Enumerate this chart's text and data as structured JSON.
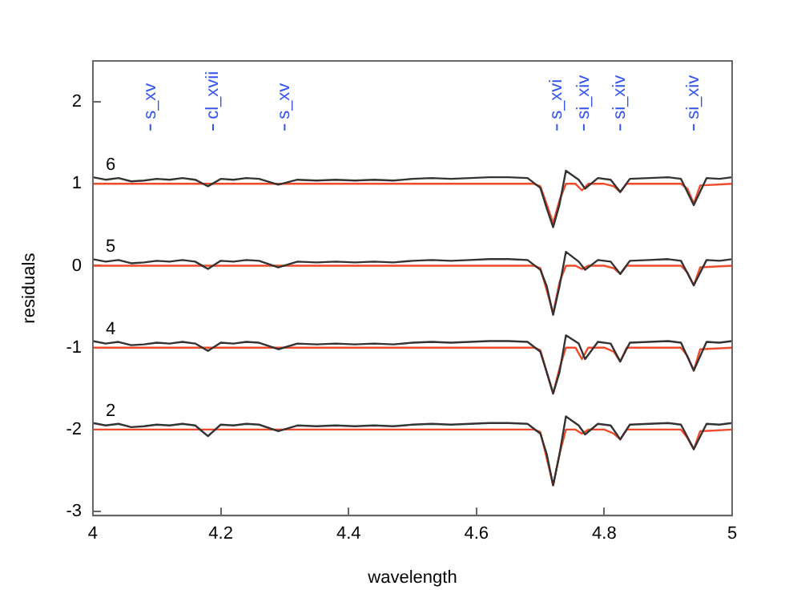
{
  "chart_data": {
    "type": "line",
    "xlabel": "wavelength",
    "ylabel": "residuals",
    "xlim": [
      4,
      5
    ],
    "xticks": [
      4,
      4.2,
      4.4,
      4.6,
      4.8,
      5
    ],
    "ylim": [
      -3.05,
      2.5
    ],
    "yticks": [
      -3,
      -2,
      -1,
      0,
      1,
      2
    ],
    "grid": false,
    "legend": false,
    "marker": "none",
    "line_style": "solid",
    "ref_lines": [
      {
        "axis": "x",
        "value": 4.09,
        "label": "s_xv",
        "color": "#3355ee"
      },
      {
        "axis": "x",
        "value": 4.188,
        "label": "cl_xvii",
        "color": "#3355ee"
      },
      {
        "axis": "x",
        "value": 4.3,
        "label": "s_xv",
        "color": "#3355ee"
      },
      {
        "axis": "x",
        "value": 4.726,
        "label": "s_xvi",
        "color": "#3355ee"
      },
      {
        "axis": "x",
        "value": 4.768,
        "label": "si_xiv",
        "color": "#3355ee"
      },
      {
        "axis": "x",
        "value": 4.825,
        "label": "si_xiv",
        "color": "#3355ee"
      },
      {
        "axis": "x",
        "value": 4.94,
        "label": "si_xiv",
        "color": "#3355ee"
      }
    ],
    "series": [
      {
        "name": "6",
        "color": "#333333",
        "x": [
          4.0,
          4.02,
          4.04,
          4.06,
          4.08,
          4.1,
          4.12,
          4.14,
          4.16,
          4.18,
          4.2,
          4.22,
          4.24,
          4.26,
          4.29,
          4.32,
          4.35,
          4.38,
          4.41,
          4.44,
          4.47,
          4.5,
          4.53,
          4.56,
          4.59,
          4.62,
          4.65,
          4.68,
          4.7,
          4.71,
          4.72,
          4.73,
          4.74,
          4.76,
          4.77,
          4.79,
          4.81,
          4.825,
          4.84,
          4.87,
          4.9,
          4.92,
          4.94,
          4.96,
          4.98,
          5.0
        ],
        "values": [
          1.08,
          1.05,
          1.07,
          1.03,
          1.04,
          1.06,
          1.05,
          1.07,
          1.05,
          0.97,
          1.06,
          1.05,
          1.07,
          1.06,
          0.99,
          1.05,
          1.04,
          1.05,
          1.04,
          1.05,
          1.04,
          1.06,
          1.07,
          1.06,
          1.07,
          1.08,
          1.08,
          1.07,
          0.95,
          0.7,
          0.47,
          0.75,
          1.16,
          1.05,
          0.94,
          1.07,
          1.05,
          0.9,
          1.06,
          1.07,
          1.08,
          1.06,
          0.74,
          1.07,
          1.06,
          1.08
        ]
      },
      {
        "name": "5",
        "color": "#333333",
        "x": [
          4.0,
          4.02,
          4.04,
          4.06,
          4.08,
          4.1,
          4.12,
          4.14,
          4.16,
          4.18,
          4.2,
          4.22,
          4.24,
          4.26,
          4.29,
          4.32,
          4.35,
          4.38,
          4.41,
          4.44,
          4.47,
          4.5,
          4.53,
          4.56,
          4.59,
          4.62,
          4.65,
          4.68,
          4.7,
          4.71,
          4.72,
          4.73,
          4.74,
          4.76,
          4.77,
          4.79,
          4.81,
          4.825,
          4.84,
          4.87,
          4.9,
          4.92,
          4.94,
          4.96,
          4.98,
          5.0
        ],
        "values": [
          0.08,
          0.05,
          0.07,
          0.03,
          0.04,
          0.06,
          0.05,
          0.07,
          0.05,
          -0.04,
          0.06,
          0.05,
          0.07,
          0.06,
          -0.02,
          0.05,
          0.04,
          0.05,
          0.04,
          0.05,
          0.04,
          0.06,
          0.07,
          0.06,
          0.07,
          0.08,
          0.08,
          0.07,
          -0.05,
          -0.25,
          -0.6,
          -0.25,
          0.17,
          0.05,
          -0.05,
          0.07,
          0.05,
          -0.1,
          0.06,
          0.07,
          0.08,
          0.06,
          -0.24,
          0.07,
          0.06,
          0.08
        ]
      },
      {
        "name": "4",
        "color": "#333333",
        "x": [
          4.0,
          4.02,
          4.04,
          4.06,
          4.08,
          4.1,
          4.12,
          4.14,
          4.16,
          4.18,
          4.2,
          4.22,
          4.24,
          4.26,
          4.29,
          4.32,
          4.35,
          4.38,
          4.41,
          4.44,
          4.47,
          4.5,
          4.53,
          4.56,
          4.59,
          4.62,
          4.65,
          4.68,
          4.7,
          4.71,
          4.72,
          4.73,
          4.74,
          4.76,
          4.77,
          4.79,
          4.81,
          4.825,
          4.84,
          4.87,
          4.9,
          4.92,
          4.94,
          4.96,
          4.98,
          5.0
        ],
        "values": [
          -0.92,
          -0.95,
          -0.93,
          -0.97,
          -0.96,
          -0.94,
          -0.95,
          -0.93,
          -0.95,
          -1.04,
          -0.94,
          -0.95,
          -0.93,
          -0.94,
          -1.02,
          -0.95,
          -0.96,
          -0.95,
          -0.96,
          -0.95,
          -0.96,
          -0.94,
          -0.93,
          -0.94,
          -0.93,
          -0.92,
          -0.92,
          -0.93,
          -1.05,
          -1.3,
          -1.56,
          -1.3,
          -0.85,
          -0.95,
          -1.14,
          -0.93,
          -0.95,
          -1.17,
          -0.94,
          -0.93,
          -0.92,
          -0.94,
          -1.28,
          -0.93,
          -0.94,
          -0.92
        ]
      },
      {
        "name": "2",
        "color": "#333333",
        "x": [
          4.0,
          4.02,
          4.04,
          4.06,
          4.08,
          4.1,
          4.12,
          4.14,
          4.16,
          4.18,
          4.2,
          4.22,
          4.24,
          4.26,
          4.29,
          4.32,
          4.35,
          4.38,
          4.41,
          4.44,
          4.47,
          4.5,
          4.53,
          4.56,
          4.59,
          4.62,
          4.65,
          4.68,
          4.7,
          4.71,
          4.72,
          4.73,
          4.74,
          4.76,
          4.77,
          4.79,
          4.81,
          4.825,
          4.84,
          4.87,
          4.9,
          4.92,
          4.94,
          4.96,
          4.98,
          5.0
        ],
        "values": [
          -1.92,
          -1.95,
          -1.93,
          -1.97,
          -1.96,
          -1.94,
          -1.95,
          -1.93,
          -1.95,
          -2.08,
          -1.94,
          -1.95,
          -1.93,
          -1.94,
          -2.02,
          -1.95,
          -1.96,
          -1.95,
          -1.96,
          -1.95,
          -1.96,
          -1.94,
          -1.93,
          -1.94,
          -1.93,
          -1.92,
          -1.92,
          -1.93,
          -2.05,
          -2.3,
          -2.68,
          -2.3,
          -1.84,
          -1.95,
          -2.06,
          -1.93,
          -1.95,
          -2.12,
          -1.94,
          -1.93,
          -1.92,
          -1.94,
          -2.24,
          -1.93,
          -1.94,
          -1.92
        ]
      },
      {
        "color": "#f04a2a",
        "x": [
          4.0,
          4.69,
          4.7,
          4.71,
          4.72,
          4.73,
          4.74,
          4.755,
          4.765,
          4.775,
          4.8,
          4.815,
          4.825,
          4.835,
          4.92,
          4.93,
          4.94,
          4.95,
          5.0
        ],
        "values": [
          1,
          1,
          0.97,
          0.75,
          0.52,
          0.8,
          1.0,
          1.0,
          0.92,
          1.0,
          1.0,
          0.97,
          0.9,
          1.0,
          1.0,
          0.94,
          0.76,
          0.98,
          1.0
        ]
      },
      {
        "color": "#f04a2a",
        "x": [
          4.0,
          4.69,
          4.7,
          4.71,
          4.72,
          4.73,
          4.74,
          4.755,
          4.765,
          4.775,
          4.8,
          4.815,
          4.825,
          4.835,
          4.92,
          4.93,
          4.94,
          4.95,
          5.0
        ],
        "values": [
          0,
          0,
          -0.03,
          -0.3,
          -0.58,
          -0.2,
          0,
          0,
          -0.04,
          0,
          0,
          -0.03,
          -0.1,
          0,
          0,
          -0.08,
          -0.24,
          -0.02,
          0
        ]
      },
      {
        "color": "#f04a2a",
        "x": [
          4.0,
          4.69,
          4.7,
          4.71,
          4.72,
          4.73,
          4.74,
          4.755,
          4.765,
          4.775,
          4.8,
          4.815,
          4.825,
          4.835,
          4.92,
          4.93,
          4.94,
          4.95,
          5.0
        ],
        "values": [
          -1,
          -1,
          -1.03,
          -1.3,
          -1.56,
          -1.25,
          -1,
          -1,
          -1.14,
          -1,
          -1,
          -1.05,
          -1.17,
          -1,
          -1,
          -1.1,
          -1.28,
          -1.02,
          -1
        ]
      },
      {
        "color": "#f04a2a",
        "x": [
          4.0,
          4.69,
          4.7,
          4.71,
          4.72,
          4.73,
          4.74,
          4.755,
          4.765,
          4.775,
          4.8,
          4.815,
          4.825,
          4.835,
          4.92,
          4.93,
          4.94,
          4.95,
          5.0
        ],
        "values": [
          -2,
          -2,
          -2.03,
          -2.35,
          -2.68,
          -2.3,
          -2,
          -2,
          -2.05,
          -2,
          -2,
          -2.05,
          -2.12,
          -2,
          -2,
          -2.1,
          -2.24,
          -2.02,
          -2
        ]
      }
    ]
  }
}
